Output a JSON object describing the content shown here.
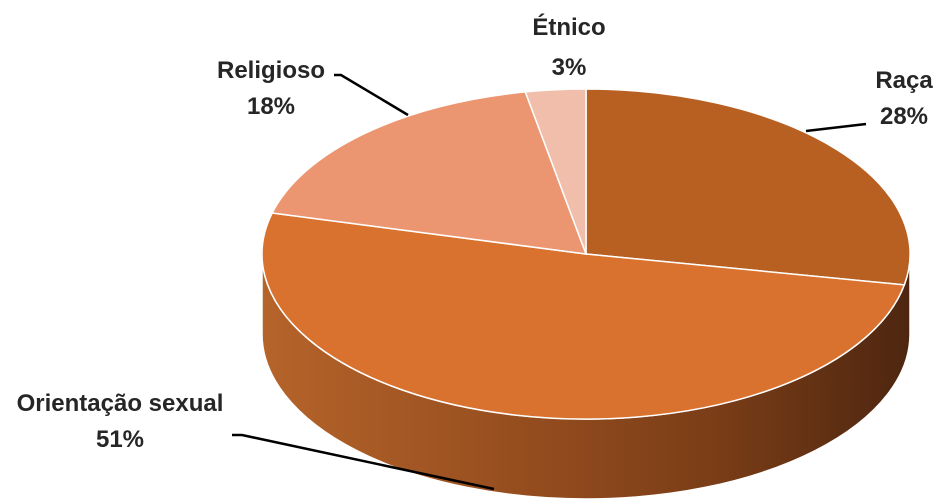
{
  "chart_data": {
    "type": "pie",
    "style": "3d",
    "slices": [
      {
        "label": "Raça",
        "value": 28,
        "value_label": "28%",
        "color": "#b85f22"
      },
      {
        "label": "Orientação sexual",
        "value": 51,
        "value_label": "51%",
        "color": "#d9722e"
      },
      {
        "label": "Religioso",
        "value": 18,
        "value_label": "18%",
        "color": "#eb9670"
      },
      {
        "label": "Étnico",
        "value": 3,
        "value_label": "3%",
        "color": "#f1beac"
      }
    ]
  }
}
